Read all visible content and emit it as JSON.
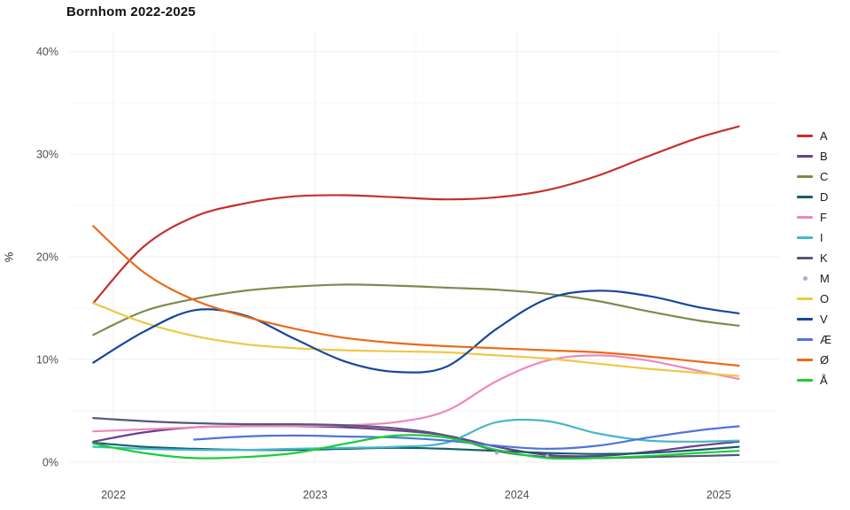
{
  "title": "Bornhom 2022-2025",
  "chart_data": {
    "type": "line",
    "title": "Bornhom 2022-2025",
    "xlabel": "",
    "ylabel": "%",
    "legend_position": "right",
    "grid": true,
    "xlim": [
      2021.78,
      2025.3
    ],
    "ylim": [
      0,
      42
    ],
    "x_tick_values": [
      2022,
      2023,
      2024,
      2025
    ],
    "x_tick_labels": [
      "2022",
      "2023",
      "2024",
      "2025"
    ],
    "y_tick_values": [
      0,
      10,
      20,
      30,
      40
    ],
    "y_tick_labels": [
      "0%",
      "10%",
      "20%",
      "30%",
      "40%"
    ],
    "x_minor_ticks": [
      2022.5,
      2023.5,
      2024.5
    ],
    "y_minor_ticks": [
      5,
      15,
      25,
      35
    ],
    "x": [
      2021.9,
      2022.15,
      2022.4,
      2022.65,
      2022.9,
      2023.15,
      2023.4,
      2023.65,
      2023.9,
      2024.15,
      2024.4,
      2024.65,
      2024.9,
      2025.1
    ],
    "series": [
      {
        "name": "A",
        "color": "#c5302c",
        "style": "line",
        "values": [
          15.5,
          21.0,
          23.9,
          25.2,
          25.9,
          26.0,
          25.8,
          25.6,
          25.8,
          26.5,
          27.9,
          29.8,
          31.6,
          32.7
        ]
      },
      {
        "name": "B",
        "color": "#6b3e91",
        "style": "line",
        "values": [
          2.0,
          2.9,
          3.4,
          3.5,
          3.5,
          3.4,
          3.1,
          2.6,
          1.5,
          0.7,
          0.6,
          1.0,
          1.6,
          2.0
        ]
      },
      {
        "name": "C",
        "color": "#7c8b4d",
        "style": "line",
        "values": [
          12.4,
          14.7,
          15.9,
          16.7,
          17.1,
          17.3,
          17.2,
          17.0,
          16.8,
          16.4,
          15.7,
          14.7,
          13.8,
          13.3
        ]
      },
      {
        "name": "D",
        "color": "#156066",
        "style": "line",
        "values": [
          1.9,
          1.5,
          1.3,
          1.2,
          1.2,
          1.3,
          1.4,
          1.3,
          1.1,
          0.9,
          0.8,
          0.9,
          1.2,
          1.5
        ]
      },
      {
        "name": "F",
        "color": "#ef87be",
        "style": "line",
        "values": [
          3.0,
          3.2,
          3.4,
          3.5,
          3.5,
          3.6,
          3.9,
          5.0,
          7.9,
          9.9,
          10.4,
          9.9,
          8.9,
          8.1
        ]
      },
      {
        "name": "I",
        "color": "#46b8c8",
        "style": "line",
        "values": [
          1.5,
          1.3,
          1.2,
          1.2,
          1.3,
          1.4,
          1.5,
          1.9,
          3.9,
          4.0,
          2.8,
          2.1,
          2.0,
          2.1
        ]
      },
      {
        "name": "K",
        "color": "#55577a",
        "style": "line",
        "values": [
          4.3,
          4.0,
          3.8,
          3.7,
          3.7,
          3.6,
          3.3,
          2.6,
          1.1,
          0.5,
          0.4,
          0.5,
          0.6,
          0.7
        ]
      },
      {
        "name": "M",
        "color": "#baa3de",
        "style": "point",
        "values": [
          null,
          null,
          null,
          null,
          null,
          null,
          null,
          null,
          0.9,
          0.6,
          null,
          null,
          null,
          null
        ]
      },
      {
        "name": "O",
        "color": "#edc845",
        "style": "line",
        "values": [
          15.5,
          13.6,
          12.3,
          11.5,
          11.1,
          10.9,
          10.8,
          10.7,
          10.4,
          10.1,
          9.6,
          9.1,
          8.7,
          8.4
        ]
      },
      {
        "name": "V",
        "color": "#16479e",
        "style": "line",
        "values": [
          9.7,
          12.7,
          14.8,
          14.3,
          12.0,
          9.8,
          8.8,
          9.3,
          13.0,
          15.9,
          16.7,
          16.2,
          15.1,
          14.5
        ]
      },
      {
        "name": "Æ",
        "color": "#4f74d8",
        "style": "line",
        "values": [
          null,
          null,
          2.2,
          2.5,
          2.6,
          2.5,
          2.4,
          2.1,
          1.6,
          1.3,
          1.6,
          2.4,
          3.1,
          3.5
        ]
      },
      {
        "name": "Ø",
        "color": "#eb6a18",
        "style": "line",
        "values": [
          23.0,
          18.5,
          15.8,
          14.2,
          13.0,
          12.1,
          11.6,
          11.3,
          11.1,
          10.9,
          10.7,
          10.3,
          9.8,
          9.4
        ]
      },
      {
        "name": "Å",
        "color": "#18cf36",
        "style": "line",
        "values": [
          1.8,
          0.9,
          0.4,
          0.5,
          0.9,
          1.8,
          2.6,
          2.4,
          1.2,
          0.4,
          0.4,
          0.6,
          0.9,
          1.1
        ]
      }
    ]
  }
}
